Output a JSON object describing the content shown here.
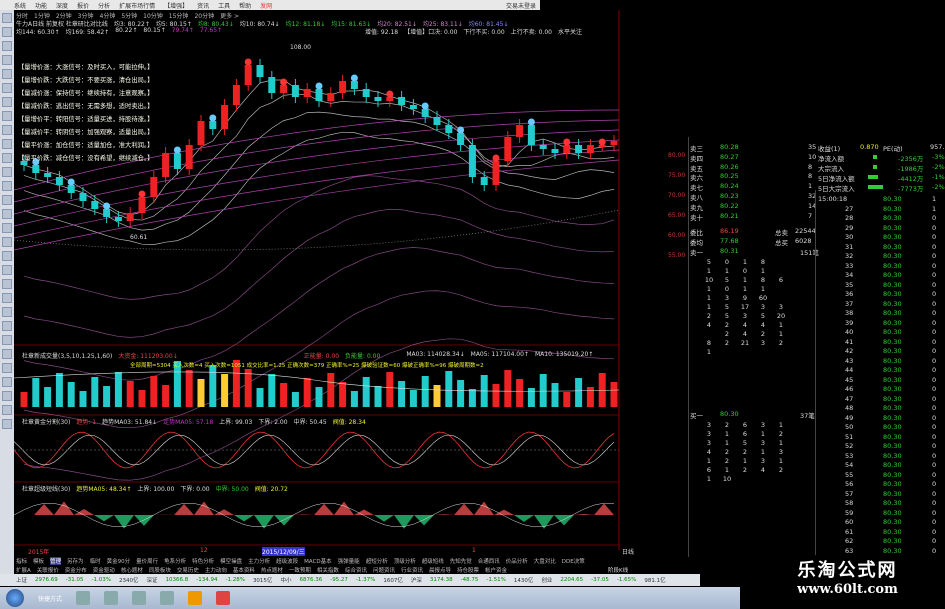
{
  "menu": [
    "系统",
    "功能",
    "深度",
    "报价",
    "分析",
    "扩展市场行情",
    "【增强】",
    "资讯",
    "工具",
    "帮助",
    "发网"
  ],
  "menu_right": "交易未登录",
  "periods": [
    "分时",
    "1分钟",
    "2分钟",
    "3分钟",
    "4分钟",
    "5分钟",
    "10分钟",
    "15分钟",
    "20分钟",
    "更多 >"
  ],
  "info1": [
    "牛力A日线 前复权 杜章研比对比线",
    "均3: 80.22↑",
    "均5: 80.15↑",
    "均8: 80.43↓",
    "均10: 80.74↓",
    "均12: 81.18↓",
    "均15: 81.63↓",
    "均20: 82.51↓",
    "均25: 83.11↓",
    "均60: 81.45↓"
  ],
  "info2": [
    "均144: 60.30↑",
    "均169: 58.42↑",
    "80.22↑",
    "80.15↑",
    "79.74↑",
    "77.65↑"
  ],
  "info3": [
    "增值: 92.18",
    "【增值】口决: 0.00",
    "下行不买: 0.00",
    "上行不卖: 0.00",
    "水平关注"
  ],
  "peak_label": "108.00",
  "low_label": "60.61",
  "signals": [
    "【量增价涨：大涨信号：及时买入，可能拉伸。】",
    "【量增价跌：大跌信号：不要买涨，清仓出局。】",
    "【量减价涨：保持信号：继续持有，注意观察。】",
    "【量减价跌：逃出信号：无需多想，适时卖出。】",
    "【量增价平：转阳信号：适量买进，持股待涨。】",
    "【量减价平：转阴信号：加强观察，适量出局。】",
    "【量平价涨：加仓信号：适量加仓，准大利润。】",
    "【量平价跌：减仓信号：没有希望，继续减仓。】"
  ],
  "price_axis": [
    "80.00",
    "75.00",
    "70.00",
    "65.00",
    "60.00",
    "55.00"
  ],
  "kline": {
    "closes": [
      75,
      73,
      72,
      70,
      68,
      66,
      64,
      62,
      61,
      63,
      67,
      72,
      78,
      74,
      80,
      86,
      84,
      90,
      95,
      100,
      97,
      93,
      95,
      92,
      94,
      91,
      93,
      96,
      94,
      92,
      91,
      92,
      90,
      89,
      87,
      85,
      83,
      80,
      72,
      70,
      76,
      82,
      85,
      80,
      79,
      78,
      80,
      78,
      80,
      80,
      81
    ],
    "up": "#e22",
    "down": "#2cc"
  },
  "volume_panel": {
    "title": "杜章新成交量(3,5,10,1.25,1,60)",
    "big": "大资金: 111203.00↓",
    "pos": "正能量: 0.00",
    "neg": "负能量: 0.00",
    "ma3": "MA03: 114028.34↓",
    "ma5": "MA05: 117104.00↑",
    "ma10": "MA10: 135019.20↑",
    "stats": "全部周期=5304  买入次数=4  买入次数=1051  成交比率=1.25  正确次数=379  正确率%=25  爆破验证数=60  爆破正确率%=96  爆破周期数=2"
  },
  "ind1": {
    "title": "杜章黄金分割(30)",
    "a": "趋势: 1",
    "b": "趋势MA03: 51.84↓",
    "c": "走势MA05: 57.18",
    "d": "上界: 99.03",
    "e": "下界: 2.00",
    "f": "中界: 50.45",
    "g": "阀值: 28.34"
  },
  "ind2": {
    "title": "杜章超级短线(30)",
    "a": "趋势MA05: 48.34↑",
    "b": "上界: 100.00",
    "c": "下界: 0.00",
    "d": "中界: 50.00",
    "e": "阀值: 20.72"
  },
  "dates": [
    "2015年",
    "12",
    "2015/12/09/三",
    "1",
    "日线"
  ],
  "tabs1": [
    "指标",
    "模板",
    "管理",
    "另存为",
    "临时",
    "黄金90分",
    "量价周行",
    "龟系分析",
    "特色分析",
    "模空操盘",
    "主力分析",
    "超级波段",
    "MACD基本",
    "强弹量能",
    "超短分析",
    "顶级分析",
    "超级短线",
    "先知先觉",
    "合通西讯",
    "价品分析",
    "大盘对比",
    "DDE决策"
  ],
  "tabs2": [
    "扩展A",
    "关联报价",
    "资金分布",
    "资金驱动",
    "核心题材",
    "同股板块",
    "交易历史",
    "主力动向",
    "基本资料",
    "热点题材",
    "一致预期",
    "相关指数",
    "综合资讯",
    "问题资讯",
    "行业资讯",
    "晨报点导",
    "持仓股票",
    "帐户资金"
  ],
  "tabs2_right": "阶段K线",
  "orderbook": {
    "sells": [
      [
        "卖三",
        "80.28",
        "35"
      ],
      [
        "卖四",
        "80.27",
        "10"
      ],
      [
        "卖五",
        "80.26",
        "8"
      ],
      [
        "卖六",
        "80.25",
        "8"
      ],
      [
        "卖七",
        "80.24",
        "1"
      ],
      [
        "卖八",
        "80.23",
        "32"
      ],
      [
        "卖九",
        "80.22",
        "14"
      ],
      [
        "卖十",
        "80.21",
        "7"
      ]
    ],
    "ratio": [
      "委比",
      "86.19",
      "总卖",
      "22544"
    ],
    "avg": [
      "委均",
      "77.68",
      "总买",
      "6028"
    ],
    "sell1": [
      "卖一",
      "80.31",
      "151笔"
    ],
    "buy1": [
      "买一",
      "80.30",
      "37笔"
    ],
    "sell_grid": [
      "5",
      "0",
      "1",
      "8",
      "",
      "1",
      "1",
      "0",
      "1",
      "",
      "10",
      "5",
      "1",
      "8",
      "6",
      "1",
      "0",
      "1",
      "1",
      "",
      "1",
      "3",
      "9",
      "60",
      "",
      "1",
      "5",
      "17",
      "3",
      "3",
      "2",
      "5",
      "3",
      "5",
      "20",
      "4",
      "2",
      "4",
      "4",
      "1",
      "",
      "2",
      "4",
      "2",
      "1",
      "8",
      "2",
      "21",
      "3",
      "2",
      "1"
    ],
    "buy_grid": [
      "3",
      "2",
      "6",
      "3",
      "1",
      "3",
      "1",
      "6",
      "1",
      "2",
      "3",
      "1",
      "5",
      "3",
      "1",
      "4",
      "2",
      "2",
      "1",
      "3",
      "1",
      "2",
      "1",
      "3",
      "1",
      "6",
      "1",
      "2",
      "4",
      "2",
      "1",
      "10",
      "",
      "",
      ""
    ]
  },
  "flow": {
    "eps": "收益(1)",
    "eps_v": "0.870",
    "pe": "PE(动)",
    "pe_v": "957.7",
    "rows": [
      [
        "净流入额",
        "-2356万",
        "-3%"
      ],
      [
        "大宗流入",
        "-1986万",
        "-2%"
      ],
      [
        "5日净流入额",
        "-4412万",
        "-1%"
      ],
      [
        "5日大宗流入",
        "-7773万",
        "-2%"
      ]
    ]
  },
  "ticks": [
    [
      "15:00:18",
      "80.30",
      "1"
    ],
    [
      "27",
      "80.30",
      "1"
    ],
    [
      "28",
      "80.30",
      "0"
    ],
    [
      "29",
      "80.30",
      "0"
    ],
    [
      "30",
      "80.30",
      "0"
    ],
    [
      "31",
      "80.30",
      "0"
    ],
    [
      "32",
      "80.30",
      "0"
    ],
    [
      "33",
      "80.30",
      "0"
    ],
    [
      "34",
      "80.30",
      "0"
    ],
    [
      "35",
      "80.30",
      "0"
    ],
    [
      "36",
      "80.30",
      "0"
    ],
    [
      "37",
      "80.30",
      "0"
    ],
    [
      "38",
      "80.30",
      "0"
    ],
    [
      "39",
      "80.30",
      "0"
    ],
    [
      "40",
      "80.30",
      "0"
    ],
    [
      "41",
      "80.30",
      "0"
    ],
    [
      "42",
      "80.30",
      "0"
    ],
    [
      "43",
      "80.30",
      "0"
    ],
    [
      "44",
      "80.30",
      "0"
    ],
    [
      "45",
      "80.30",
      "0"
    ],
    [
      "46",
      "80.30",
      "0"
    ],
    [
      "47",
      "80.30",
      "0"
    ],
    [
      "48",
      "80.30",
      "0"
    ],
    [
      "49",
      "80.30",
      "0"
    ],
    [
      "50",
      "80.30",
      "0"
    ],
    [
      "51",
      "80.30",
      "0"
    ],
    [
      "52",
      "80.30",
      "0"
    ],
    [
      "53",
      "80.30",
      "0"
    ],
    [
      "54",
      "80.30",
      "0"
    ],
    [
      "55",
      "80.30",
      "0"
    ],
    [
      "56",
      "80.30",
      "0"
    ],
    [
      "57",
      "80.30",
      "0"
    ],
    [
      "58",
      "80.30",
      "0"
    ],
    [
      "59",
      "80.30",
      "0"
    ],
    [
      "60",
      "80.30",
      "0"
    ],
    [
      "61",
      "80.30",
      "0"
    ],
    [
      "62",
      "80.30",
      "0"
    ],
    [
      "63",
      "80.30",
      "0"
    ]
  ],
  "status": [
    [
      "上证",
      "2976.69",
      "-31.05",
      "-1.03%",
      "2340亿"
    ],
    [
      "深证",
      "10366.8",
      "-134.94",
      "-1.28%",
      "3015亿"
    ],
    [
      "中小",
      "6876.36",
      "-95.27",
      "-1.37%",
      "1607亿"
    ],
    [
      "沪深",
      "3174.38",
      "-48.75",
      "-1.51%",
      "1430亿"
    ],
    [
      "创业",
      "2204.65",
      "-37.05",
      "-1.65%",
      "981.1亿"
    ]
  ],
  "taskbar_label": "快捷方式",
  "watermark": {
    "title": "乐淘公式网",
    "url": "www.60lt.com"
  }
}
